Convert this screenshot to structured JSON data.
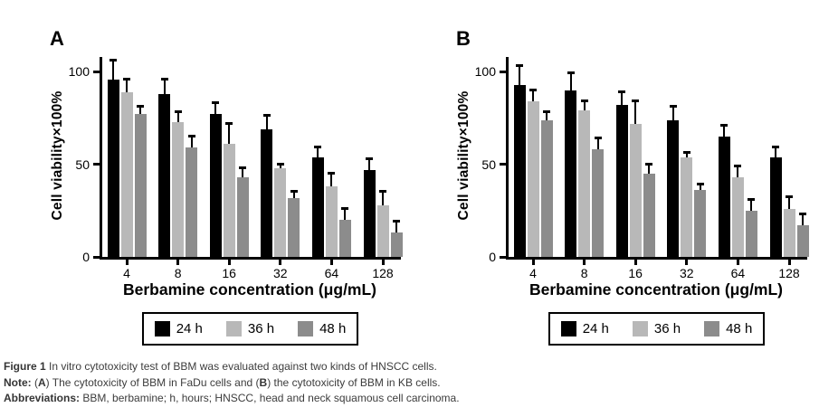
{
  "figure": {
    "caption": {
      "lines": [
        {
          "segments": [
            {
              "text": "Figure 1 ",
              "bold": true
            },
            {
              "text": "In vitro cytotoxicity test of BBM was evaluated against two kinds of HNSCC cells.",
              "bold": false
            }
          ]
        },
        {
          "segments": [
            {
              "text": "Note: ",
              "bold": true
            },
            {
              "text": "(",
              "bold": false
            },
            {
              "text": "A",
              "bold": true
            },
            {
              "text": ") The cytotoxicity of BBM in FaDu cells and (",
              "bold": false
            },
            {
              "text": "B",
              "bold": true
            },
            {
              "text": ") the cytotoxicity of BBM in KB cells.",
              "bold": false
            }
          ]
        },
        {
          "segments": [
            {
              "text": "Abbreviations: ",
              "bold": true
            },
            {
              "text": "BBM, berbamine; h, hours; HNSCC, head and neck squamous cell carcinoma.",
              "bold": false
            }
          ]
        }
      ]
    }
  },
  "chart_data": [
    {
      "type": "bar",
      "panel_label": "A",
      "cell_line": "FaDu",
      "xlabel": "Berbamine concentration (μg/mL)",
      "ylabel": "Cell viability×100%",
      "categories": [
        "4",
        "8",
        "16",
        "32",
        "64",
        "128"
      ],
      "yticks": [
        0,
        50,
        100
      ],
      "ylim": [
        0,
        108
      ],
      "grid": false,
      "error_bars": "upper",
      "legend_position": "bottom",
      "series": [
        {
          "name": "24 h",
          "color": "#000000",
          "values": [
            96,
            88,
            77,
            69,
            54,
            47
          ],
          "errors": [
            11,
            9,
            7,
            8,
            6,
            7
          ]
        },
        {
          "name": "36 h",
          "color": "#b8b8b8",
          "values": [
            89,
            73,
            61,
            48,
            38,
            28
          ],
          "errors": [
            8,
            6,
            12,
            3,
            8,
            8
          ]
        },
        {
          "name": "48 h",
          "color": "#8c8c8c",
          "values": [
            77,
            59,
            43,
            32,
            20,
            13
          ],
          "errors": [
            5,
            7,
            6,
            4,
            7,
            7
          ]
        }
      ]
    },
    {
      "type": "bar",
      "panel_label": "B",
      "cell_line": "KB",
      "xlabel": "Berbamine concentration (μg/mL)",
      "ylabel": "Cell viability×100%",
      "categories": [
        "4",
        "8",
        "16",
        "32",
        "64",
        "128"
      ],
      "yticks": [
        0,
        50,
        100
      ],
      "ylim": [
        0,
        108
      ],
      "grid": false,
      "error_bars": "upper",
      "legend_position": "bottom",
      "series": [
        {
          "name": "24 h",
          "color": "#000000",
          "values": [
            93,
            90,
            82,
            74,
            65,
            54
          ],
          "errors": [
            11,
            10,
            8,
            8,
            7,
            6
          ]
        },
        {
          "name": "36 h",
          "color": "#b8b8b8",
          "values": [
            84,
            79,
            72,
            54,
            43,
            26
          ],
          "errors": [
            7,
            6,
            13,
            3,
            7,
            7
          ]
        },
        {
          "name": "48 h",
          "color": "#8c8c8c",
          "values": [
            74,
            58,
            45,
            36,
            25,
            17
          ],
          "errors": [
            5,
            7,
            6,
            4,
            7,
            7
          ]
        }
      ]
    }
  ]
}
